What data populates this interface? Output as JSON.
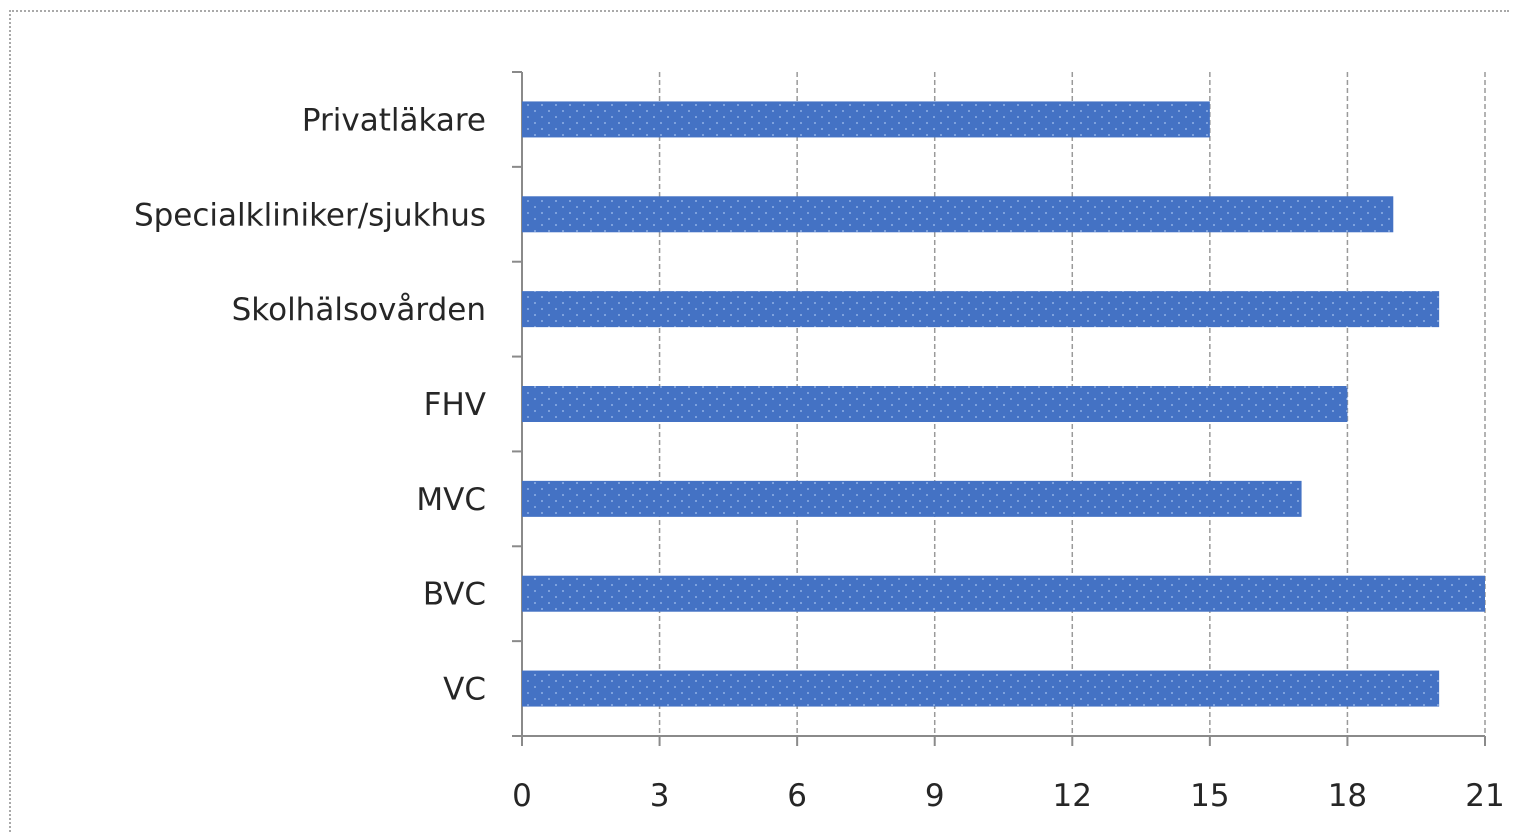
{
  "chart_data": {
    "type": "bar",
    "orientation": "horizontal",
    "categories": [
      "Privatläkare",
      "Specialkliniker/sjukhus",
      "Skolhälsovården",
      "FHV",
      "MVC",
      "BVC",
      "VC"
    ],
    "values": [
      15,
      19,
      20,
      18,
      17,
      21,
      20
    ],
    "x_ticks": [
      "0",
      "3",
      "6",
      "9",
      "12",
      "15",
      "18",
      "21"
    ],
    "xlim": [
      0,
      21
    ],
    "title": "",
    "xlabel": "",
    "ylabel": "",
    "grid": "vertical gridlines (dashed)",
    "legend": "none",
    "bar_color": "#4472c4",
    "bar_pattern": "dotted fill"
  }
}
